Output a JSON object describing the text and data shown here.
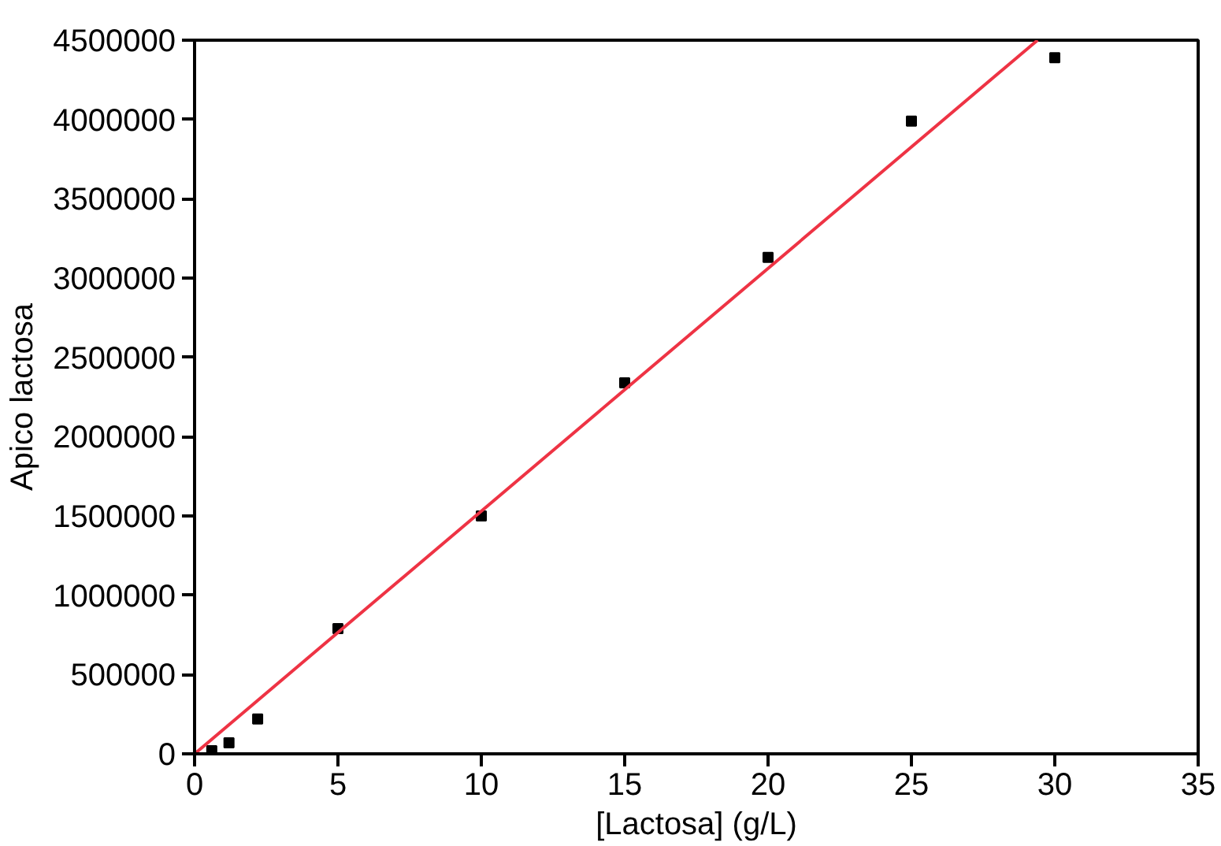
{
  "chart_data": {
    "type": "scatter",
    "xlabel": "[Lactosa] (g/L)",
    "ylabel": "Apico lactosa",
    "series": [
      {
        "color": "#000000",
        "marker": "square",
        "x": [
          0.6,
          1.2,
          2.2,
          5,
          10,
          15,
          20,
          25,
          30
        ],
        "values": [
          20000,
          70000,
          220000,
          790000,
          1500000,
          2340000,
          3130000,
          3990000,
          4390000
        ]
      },
      {
        "type": "line",
        "color": "#ee3344",
        "line_style": "solid",
        "marker": "none",
        "x": [
          0,
          29.4
        ],
        "values": [
          0,
          4500000
        ]
      }
    ],
    "xlim": [
      0,
      35
    ],
    "xticks": [
      0,
      5,
      10,
      15,
      20,
      25,
      30,
      35
    ],
    "ylim": [
      0,
      4500000
    ],
    "yticks": [
      0,
      500000,
      1000000,
      1500000,
      2000000,
      2500000,
      3000000,
      3500000,
      4000000,
      4500000
    ],
    "grid": false
  }
}
